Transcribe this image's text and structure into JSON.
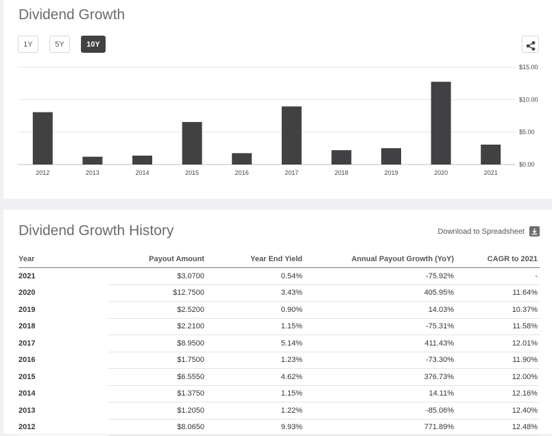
{
  "chart_section": {
    "title": "Dividend Growth",
    "range_buttons": [
      {
        "label": "1Y",
        "active": false
      },
      {
        "label": "5Y",
        "active": false
      },
      {
        "label": "10Y",
        "active": true
      }
    ],
    "share_icon": "share-icon"
  },
  "chart_data": {
    "type": "bar",
    "title": "",
    "xlabel": "",
    "ylabel": "",
    "categories": [
      "2012",
      "2013",
      "2014",
      "2015",
      "2016",
      "2017",
      "2018",
      "2019",
      "2020",
      "2021"
    ],
    "values": [
      8.065,
      1.205,
      1.375,
      6.555,
      1.75,
      8.95,
      2.21,
      2.52,
      12.75,
      3.07
    ],
    "ylim": [
      0,
      15
    ],
    "yticks": [
      0,
      5,
      10,
      15
    ],
    "ytick_labels": [
      "$0.00",
      "$5.00",
      "$10.00",
      "$15.00"
    ],
    "y_axis_position": "right",
    "grid": true,
    "bar_color": "#414143"
  },
  "history": {
    "title": "Dividend Growth History",
    "download_label": "Download to Spreadsheet",
    "download_icon": "download-icon",
    "columns": [
      "Year",
      "Payout Amount",
      "Year End Yield",
      "Annual Payout Growth (YoY)",
      "CAGR to 2021"
    ],
    "rows": [
      [
        "2021",
        "$3.0700",
        "0.54%",
        "-75.92%",
        "-"
      ],
      [
        "2020",
        "$12.7500",
        "3.43%",
        "405.95%",
        "11.64%"
      ],
      [
        "2019",
        "$2.5200",
        "0.90%",
        "14.03%",
        "10.37%"
      ],
      [
        "2018",
        "$2.2100",
        "1.15%",
        "-75.31%",
        "11.58%"
      ],
      [
        "2017",
        "$8.9500",
        "5.14%",
        "411.43%",
        "12.01%"
      ],
      [
        "2016",
        "$1.7500",
        "1.23%",
        "-73.30%",
        "11.90%"
      ],
      [
        "2015",
        "$6.5550",
        "4.62%",
        "376.73%",
        "12.00%"
      ],
      [
        "2014",
        "$1.3750",
        "1.15%",
        "14.11%",
        "12.16%"
      ],
      [
        "2013",
        "$1.2050",
        "1.22%",
        "-85.06%",
        "12.40%"
      ],
      [
        "2012",
        "$8.0650",
        "9.93%",
        "771.89%",
        "12.48%"
      ]
    ]
  }
}
